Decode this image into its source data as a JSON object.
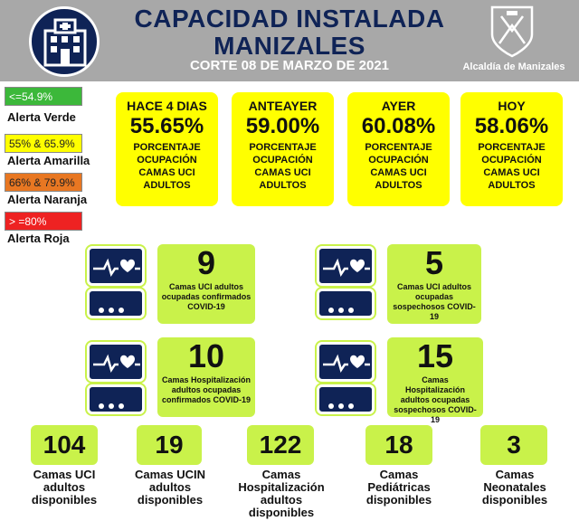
{
  "header": {
    "title_line1": "CAPACIDAD INSTALADA",
    "title_line2": "MANIZALES",
    "corte": "CORTE 08  DE MARZO DE 2021",
    "org": "Alcaldía de Manizales",
    "hospital_icon": "hospital-building-icon",
    "shield_icon": "manizales-coat-of-arms-icon"
  },
  "legend": [
    {
      "range": "<=54.9%",
      "label": "Alerta Verde",
      "color": "#3cb83a"
    },
    {
      "range": "55% & 65.9%",
      "label": "Alerta Amarilla",
      "color": "#ffff00"
    },
    {
      "range": "66% & 79.9%",
      "label": "Alerta Naranja",
      "color": "#e87722"
    },
    {
      "range": "> =80%",
      "label": "Alerta Roja",
      "color": "#ee2222"
    }
  ],
  "occupancy": [
    {
      "period": "HACE 4 DIAS",
      "value": "55.65%",
      "desc": "PORCENTAJE OCUPACIÓN CAMAS UCI ADULTOS"
    },
    {
      "period": "ANTEAYER",
      "value": "59.00%",
      "desc": "PORCENTAJE OCUPACIÓN CAMAS UCI ADULTOS"
    },
    {
      "period": "AYER",
      "value": "60.08%",
      "desc": "PORCENTAJE OCUPACIÓN CAMAS UCI ADULTOS"
    },
    {
      "period": "HOY",
      "value": "58.06%",
      "desc": "PORCENTAJE OCUPACIÓN CAMAS UCI ADULTOS"
    }
  ],
  "occupied": [
    {
      "value": "9",
      "desc": "Camas UCI adultos ocupadas confirmados COVID-19"
    },
    {
      "value": "5",
      "desc": "Camas UCI adultos ocupadas sospechosos COVID-19"
    },
    {
      "value": "10",
      "desc": "Camas  Hospitalización adultos ocupadas confirmados COVID-19"
    },
    {
      "value": "15",
      "desc": "Camas  Hospitalización adultos ocupadas sospechosos COVID-19"
    }
  ],
  "available": [
    {
      "value": "104",
      "label": "Camas UCI adultos disponibles"
    },
    {
      "value": "19",
      "label": "Camas UCIN adultos disponibles"
    },
    {
      "value": "122",
      "label": "Camas Hospitalización adultos disponibles"
    },
    {
      "value": "18",
      "label": "Camas Pediátricas disponibles"
    },
    {
      "value": "3",
      "label": "Camas Neonatales disponibles"
    }
  ],
  "colors": {
    "navy": "#0f2356",
    "header_gray": "#a8a8a8",
    "yellow": "#ffff00",
    "lime": "#c9f24a"
  },
  "monitor_icon": "heart-monitor-icon"
}
